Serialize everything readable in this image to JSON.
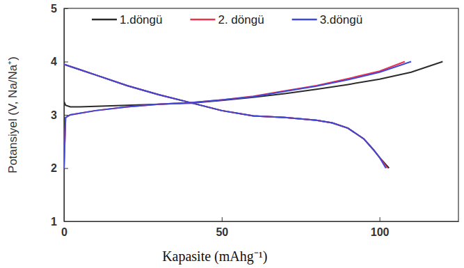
{
  "chart_data": {
    "type": "line",
    "x_label": "Kapasite (mAhg⁻¹)",
    "y_label": "Potansiyel (V, Na/Na⁺)",
    "xlim": [
      0,
      125
    ],
    "xticks": [
      0,
      50,
      100
    ],
    "ylim": [
      1,
      5
    ],
    "yticks": [
      1,
      2,
      3,
      4,
      5
    ],
    "legend": "top",
    "grid": false,
    "series": [
      {
        "name": "1.döngü",
        "color": "#2b2b2b",
        "x": [
          0,
          0.5,
          2,
          5,
          10,
          20,
          30,
          40,
          50,
          60,
          70,
          80,
          90,
          100,
          110,
          120,
          null,
          0,
          5,
          10,
          20,
          30,
          40,
          50,
          60,
          70,
          80,
          85,
          90,
          95,
          98,
          100,
          103
        ],
        "values": [
          3.25,
          3.18,
          3.15,
          3.15,
          3.16,
          3.18,
          3.2,
          3.22,
          3.27,
          3.33,
          3.4,
          3.48,
          3.57,
          3.67,
          3.8,
          4.0,
          null,
          3.95,
          3.85,
          3.75,
          3.55,
          3.38,
          3.23,
          3.08,
          2.98,
          2.95,
          2.9,
          2.85,
          2.75,
          2.55,
          2.35,
          2.2,
          2.0
        ]
      },
      {
        "name": "2. döngü",
        "color": "#e8344e",
        "x": [
          0,
          0.5,
          2,
          10,
          20,
          30,
          40,
          50,
          60,
          70,
          80,
          90,
          100,
          108,
          null,
          0,
          5,
          10,
          20,
          30,
          40,
          50,
          60,
          70,
          80,
          85,
          90,
          95,
          98,
          100,
          102.5
        ],
        "values": [
          2.0,
          2.95,
          3.0,
          3.08,
          3.15,
          3.2,
          3.23,
          3.28,
          3.35,
          3.45,
          3.55,
          3.68,
          3.82,
          4.0,
          null,
          3.95,
          3.85,
          3.75,
          3.55,
          3.38,
          3.23,
          3.08,
          2.98,
          2.95,
          2.9,
          2.85,
          2.75,
          2.55,
          2.35,
          2.2,
          2.0
        ]
      },
      {
        "name": "3.döngü",
        "color": "#3f48d8",
        "x": [
          0,
          0.5,
          2,
          10,
          20,
          30,
          40,
          50,
          60,
          70,
          80,
          90,
          100,
          110,
          null,
          0,
          5,
          10,
          20,
          30,
          40,
          50,
          60,
          70,
          80,
          85,
          90,
          95,
          98,
          100,
          102
        ],
        "values": [
          2.0,
          2.95,
          3.0,
          3.08,
          3.15,
          3.2,
          3.23,
          3.28,
          3.34,
          3.44,
          3.54,
          3.66,
          3.8,
          4.0,
          null,
          3.95,
          3.85,
          3.75,
          3.55,
          3.38,
          3.23,
          3.08,
          2.98,
          2.95,
          2.9,
          2.85,
          2.75,
          2.55,
          2.35,
          2.2,
          2.0
        ]
      }
    ]
  }
}
